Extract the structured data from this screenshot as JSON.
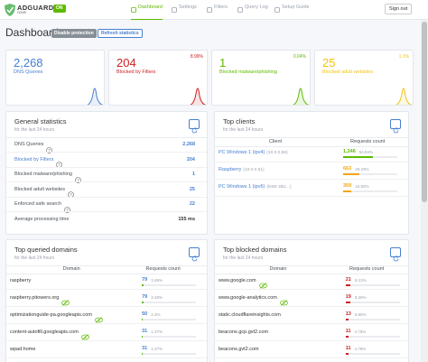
{
  "header": {
    "logo": "ADGUARD",
    "logo_sub": "HOME",
    "badge": "ON",
    "nav": [
      "Dashboard",
      "Settings",
      "Filters",
      "Query Log",
      "Setup Guide"
    ],
    "sign_out": "Sign out"
  },
  "page": {
    "title": "Dashboard",
    "buttons": [
      "Disable protection",
      "Refresh statistics"
    ]
  },
  "cards": [
    {
      "value": "2,268",
      "label": "DNS Queries",
      "color": "#467fcf"
    },
    {
      "value": "204",
      "label": "Blocked by Filters",
      "percent": "8.99%",
      "color": "#cd201f"
    },
    {
      "value": "1",
      "label": "Blocked malware/phishing",
      "percent": "0.04%",
      "color": "#5eba00"
    },
    {
      "value": "25",
      "label": "Blocked adult websites",
      "percent": "1.1%",
      "color": "#f1c40f"
    }
  ],
  "general_statistics": {
    "title": "General statistics",
    "subtitle": "for the last 24 hours",
    "rows": [
      [
        "DNS Queries",
        "2,268"
      ],
      [
        "Blocked by Filters",
        "204"
      ],
      [
        "Blocked malware/phishing",
        "1"
      ],
      [
        "Blocked adult websites",
        "25"
      ],
      [
        "Enforced safe search",
        "22"
      ],
      [
        "Average processing time",
        "155 ms"
      ]
    ]
  },
  "top_clients": {
    "title": "Top clients",
    "subtitle": "for the last 24 hours",
    "columns": [
      "Client",
      "Requests count"
    ],
    "rows": [
      {
        "name": "PC Windows 1 (ipv4)",
        "ip": "(10.0.0.58)",
        "count": "1,246",
        "percent": {
          "value": 54.94,
          "label": "54.94%"
        },
        "color": "#5eba00"
      },
      {
        "name": "Raspberry",
        "ip": "(10.0.0.51)",
        "count": "663",
        "percent": {
          "value": 29.23,
          "label": "29.23%"
        },
        "color": "#f1a60f"
      },
      {
        "name": "PC Windows 1 (ipv6)",
        "ip": "(fe80::8b1...)",
        "count": "359",
        "percent": {
          "value": 15.83,
          "label": "15.83%"
        },
        "color": "#f1a60f"
      }
    ]
  },
  "top_queried_domains": {
    "title": "Top queried domains",
    "subtitle": "for the last 24 hours",
    "columns": [
      "Domain",
      "Requests count"
    ],
    "color": "#467fcf",
    "bar_color": "#5eba00",
    "rows": [
      {
        "domain": "raspberry",
        "icon": false,
        "count": "79",
        "percent": {
          "value": 3.48,
          "label": "3.48%"
        }
      },
      {
        "domain": "raspberry.pitowers.org",
        "icon": true,
        "count": "79",
        "percent": {
          "value": 3.48,
          "label": "3.48%"
        }
      },
      {
        "domain": "optimizationguide-pa.googleapis.com",
        "icon": true,
        "count": "50",
        "percent": {
          "value": 2.2,
          "label": "2.2%"
        }
      },
      {
        "domain": "content-autofill.googleapis.com",
        "icon": true,
        "count": "31",
        "percent": {
          "value": 1.37,
          "label": "1.37%"
        }
      },
      {
        "domain": "wpad.home",
        "icon": false,
        "count": "31",
        "percent": {
          "value": 1.37,
          "label": "1.37%"
        }
      }
    ]
  },
  "top_blocked_domains": {
    "title": "Top blocked domains",
    "subtitle": "for the last 24 hours",
    "columns": [
      "Domain",
      "Requests count"
    ],
    "color": "#cd201f",
    "bar_color": "#cd201f",
    "rows": [
      {
        "domain": "www.google.com",
        "icon": true,
        "count": "21",
        "percent": {
          "value": 9.13,
          "label": "9.13%"
        }
      },
      {
        "domain": "www.google-analytics.com",
        "icon": true,
        "count": "19",
        "percent": {
          "value": 8.26,
          "label": "8.26%"
        }
      },
      {
        "domain": "static.cloudflareinsights.com",
        "icon": false,
        "count": "13",
        "percent": {
          "value": 5.65,
          "label": "5.65%"
        }
      },
      {
        "domain": "beacons.gcp.gvt2.com",
        "icon": false,
        "count": "11",
        "percent": {
          "value": 4.78,
          "label": "4.78%"
        }
      },
      {
        "domain": "beacons.gvt2.com",
        "icon": false,
        "count": "11",
        "percent": {
          "value": 4.78,
          "label": "4.78%"
        }
      }
    ]
  }
}
